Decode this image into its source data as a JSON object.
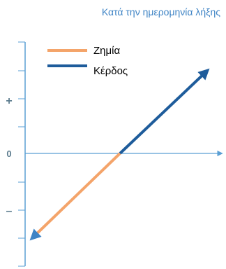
{
  "chart_data": {
    "type": "line",
    "title": "Κατά την ημερομηνία λήξης",
    "xlabel": "",
    "ylabel": "",
    "y_tick_labels": [
      "+",
      "0",
      "–"
    ],
    "legend": {
      "placement": "top-left",
      "entries": [
        "Ζημία",
        "Κέρδος"
      ]
    },
    "series": [
      {
        "name": "Ζημία",
        "color": "#f4a46a",
        "arrow_color": "#3f84c5",
        "x": [
          0,
          -1
        ],
        "y": [
          0,
          -1
        ]
      },
      {
        "name": "Κέρδος",
        "color": "#1e5c9b",
        "x": [
          0,
          1
        ],
        "y": [
          0,
          1
        ]
      }
    ],
    "axis_color": "#5a9fd4",
    "grid": false
  }
}
